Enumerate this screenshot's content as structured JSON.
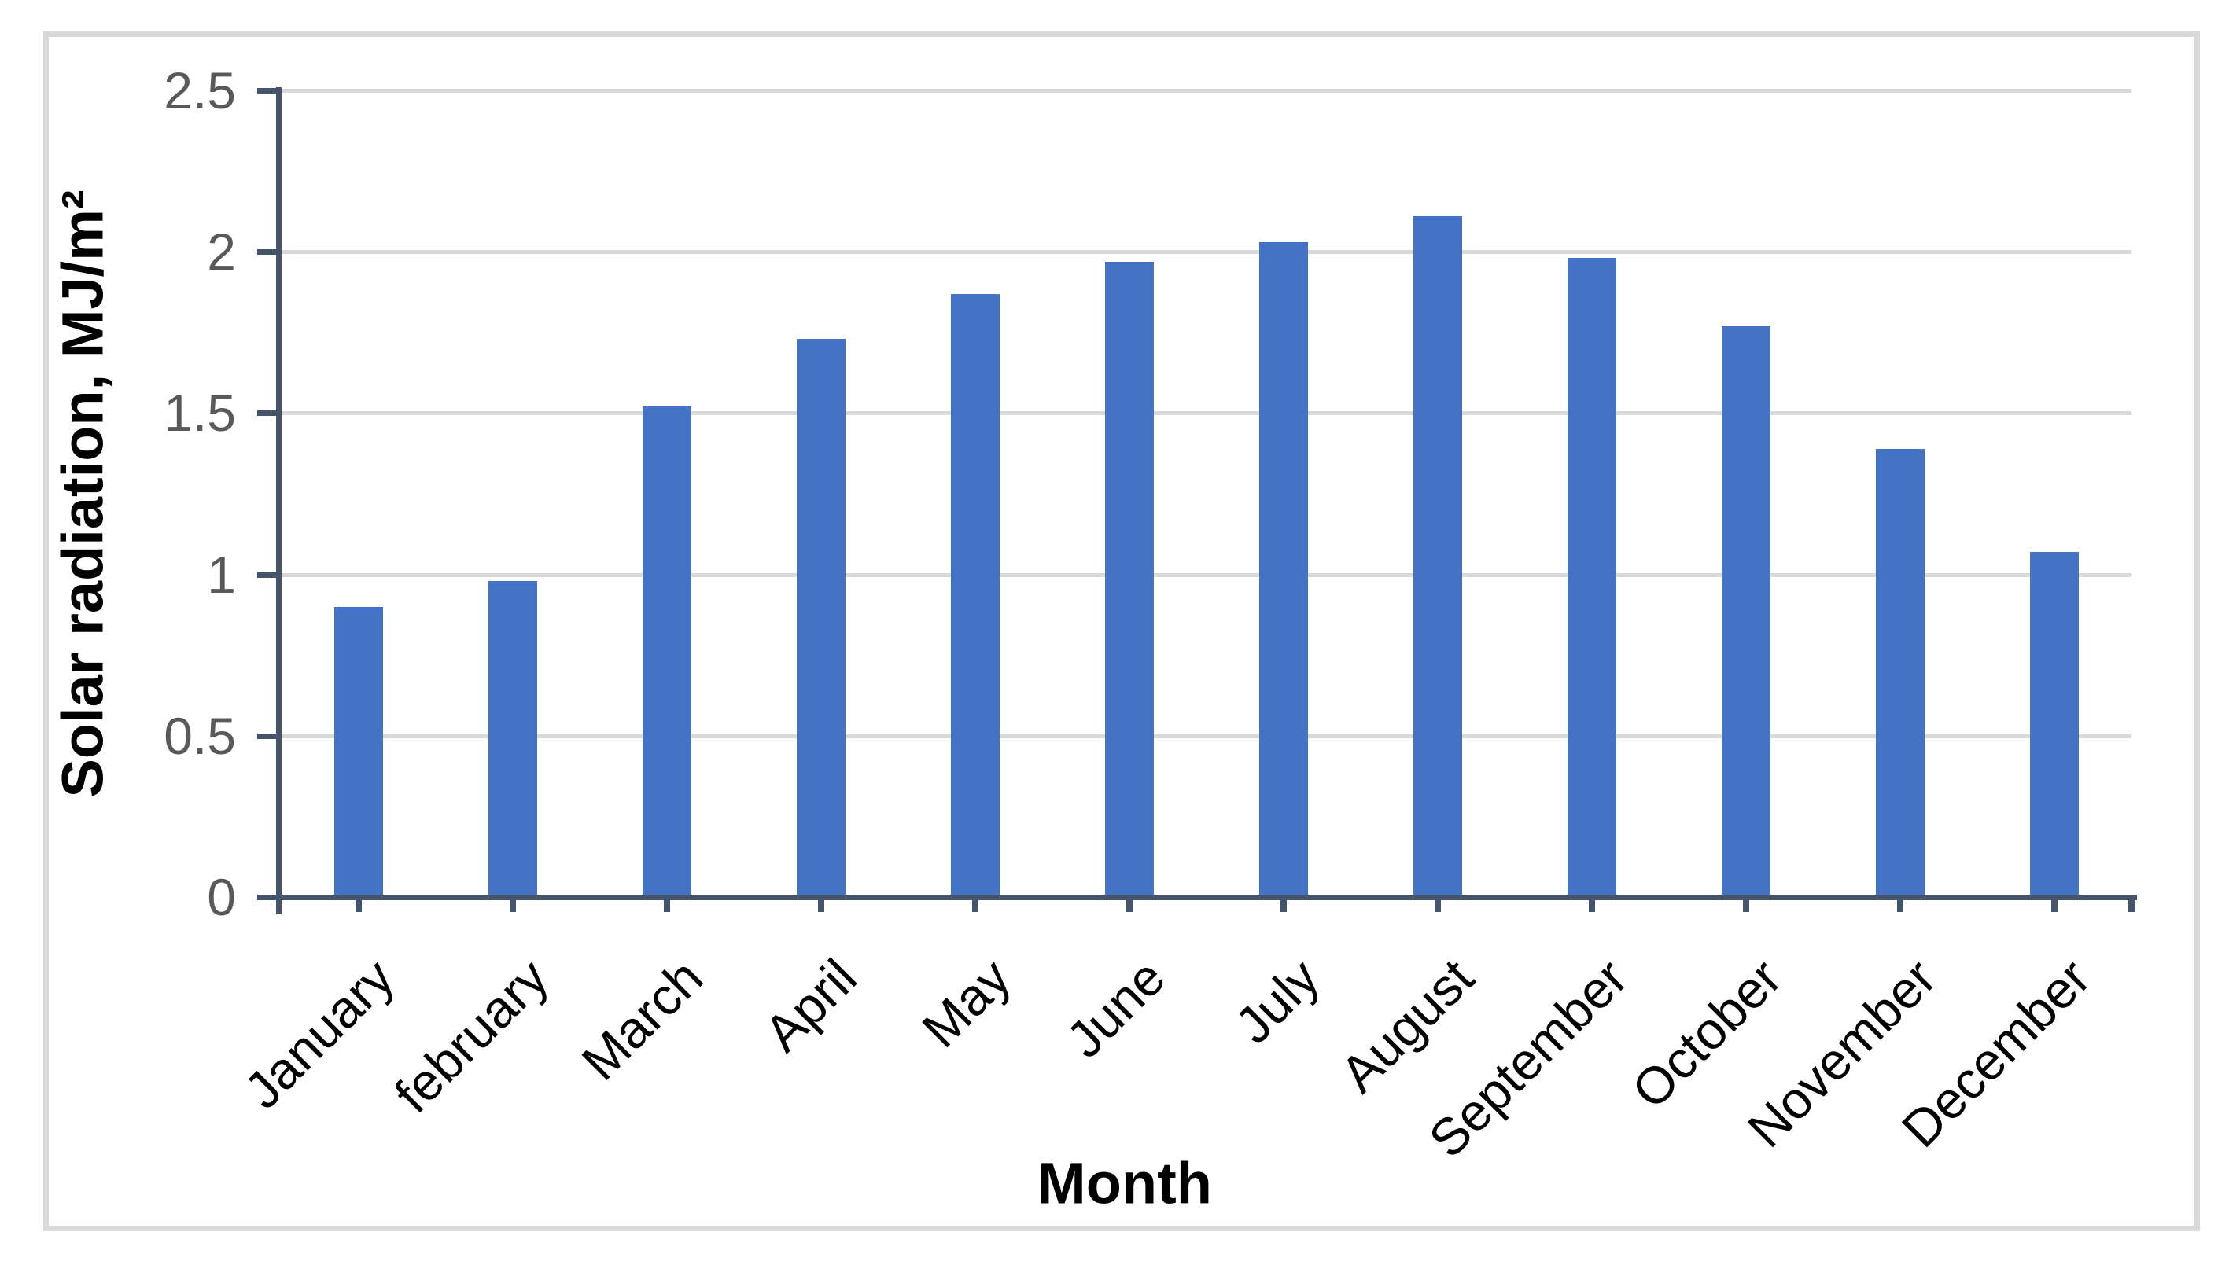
{
  "chart_data": {
    "type": "bar",
    "title": "",
    "categories": [
      "January",
      "february",
      "March",
      "April",
      "May",
      "June",
      "July",
      "August",
      "September",
      "October",
      "November",
      "December"
    ],
    "values": [
      0.9,
      0.98,
      1.52,
      1.73,
      1.87,
      1.97,
      2.03,
      2.11,
      1.98,
      1.77,
      1.39,
      1.07
    ],
    "xlabel": "Month",
    "ylabel": "Solar radiation, MJ/m²",
    "ylim": [
      0,
      2.5
    ],
    "yticks": [
      0,
      0.5,
      1,
      1.5,
      2,
      2.5
    ],
    "grid": "horizontal",
    "legend": "none",
    "colors": {
      "bar": "#4472C4",
      "axis_line": "#44546A",
      "gridline": "#D9D9D9",
      "tick_label": "#595959",
      "title_text": "#000000",
      "frame_border": "#D9D9D9",
      "background": "#FFFFFF"
    }
  }
}
